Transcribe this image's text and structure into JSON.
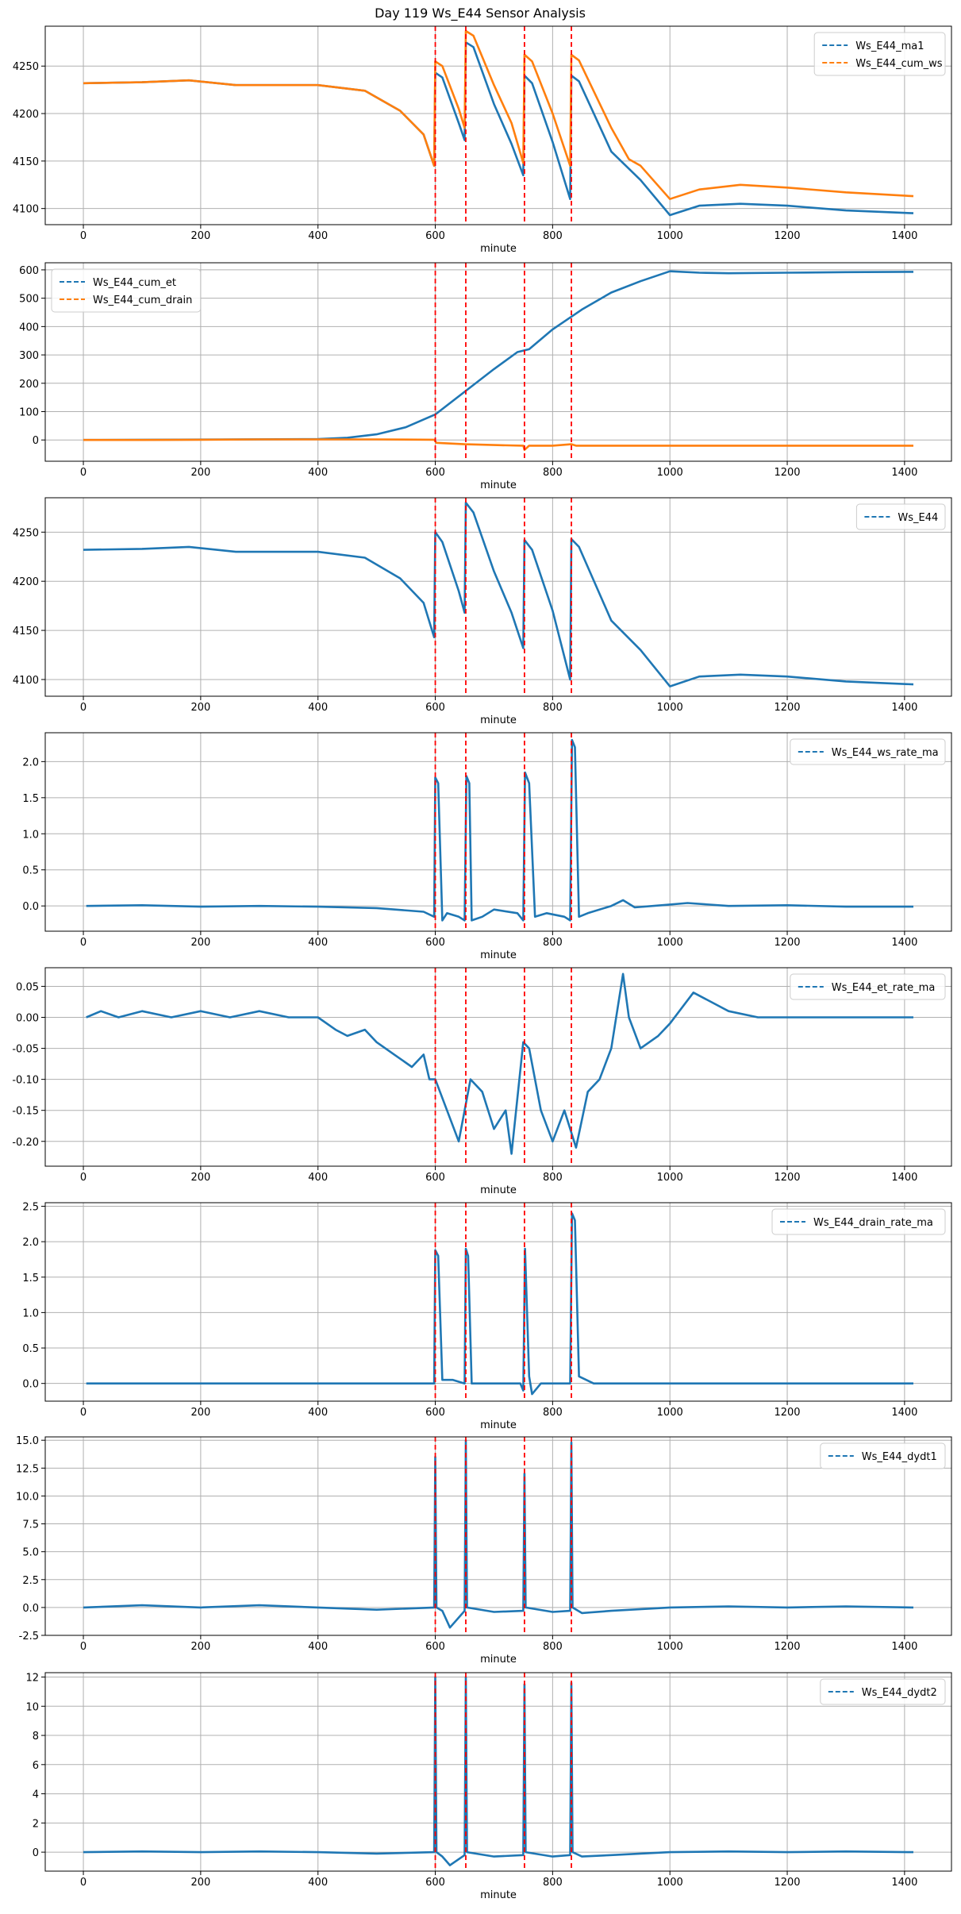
{
  "figure": {
    "title": "Day 119 Ws_E44 Sensor Analysis"
  },
  "colors": {
    "blue": "#1f77b4",
    "orange": "#ff7f0e",
    "event": "#ff0000",
    "grid": "#b0b0b0",
    "axis": "#000000"
  },
  "event_lines": [
    600,
    652,
    752,
    832
  ],
  "chart_data": [
    {
      "type": "line",
      "xlabel": "minute",
      "xlim": [
        -65,
        1480
      ],
      "ylim": [
        4083,
        4292
      ],
      "xticks": [
        0,
        200,
        400,
        600,
        800,
        1000,
        1200,
        1400
      ],
      "yticks": [
        4100,
        4150,
        4200,
        4250
      ],
      "ytick_labels": [
        "4100",
        "4150",
        "4200",
        "4250"
      ],
      "legend_pos": "top-right",
      "series": [
        {
          "name": "Ws_E44_ma1",
          "color": "blue",
          "x": [
            0,
            100,
            180,
            260,
            400,
            480,
            540,
            580,
            598,
            600,
            612,
            640,
            650,
            652,
            665,
            700,
            730,
            750,
            752,
            765,
            800,
            830,
            832,
            845,
            900,
            950,
            1000,
            1050,
            1120,
            1200,
            1300,
            1415
          ],
          "y": [
            4232,
            4233,
            4235,
            4230,
            4230,
            4224,
            4203,
            4178,
            4145,
            4243,
            4238,
            4190,
            4172,
            4275,
            4270,
            4210,
            4168,
            4135,
            4240,
            4232,
            4170,
            4110,
            4240,
            4234,
            4160,
            4130,
            4093,
            4103,
            4105,
            4103,
            4098,
            4095
          ]
        },
        {
          "name": "Ws_E44_cum_ws",
          "color": "orange",
          "x": [
            0,
            100,
            180,
            260,
            400,
            480,
            540,
            580,
            598,
            600,
            612,
            640,
            650,
            652,
            665,
            700,
            730,
            750,
            752,
            765,
            800,
            830,
            832,
            845,
            900,
            930,
            950,
            1000,
            1050,
            1120,
            1200,
            1300,
            1415
          ],
          "y": [
            4232,
            4233,
            4235,
            4230,
            4230,
            4224,
            4203,
            4178,
            4145,
            4255,
            4250,
            4205,
            4185,
            4287,
            4282,
            4230,
            4190,
            4148,
            4262,
            4255,
            4200,
            4145,
            4262,
            4256,
            4185,
            4152,
            4145,
            4110,
            4120,
            4125,
            4122,
            4117,
            4113
          ]
        }
      ]
    },
    {
      "type": "line",
      "xlabel": "minute",
      "xlim": [
        -65,
        1480
      ],
      "ylim": [
        -75,
        625
      ],
      "xticks": [
        0,
        200,
        400,
        600,
        800,
        1000,
        1200,
        1400
      ],
      "yticks": [
        0,
        100,
        200,
        300,
        400,
        500,
        600
      ],
      "ytick_labels": [
        "0",
        "100",
        "200",
        "300",
        "400",
        "500",
        "600"
      ],
      "legend_pos": "top-left",
      "series": [
        {
          "name": "Ws_E44_cum_et",
          "color": "blue",
          "x": [
            0,
            400,
            450,
            500,
            550,
            600,
            650,
            700,
            740,
            760,
            800,
            850,
            900,
            950,
            1000,
            1050,
            1100,
            1200,
            1300,
            1415
          ],
          "y": [
            0,
            3,
            8,
            20,
            45,
            90,
            170,
            250,
            310,
            320,
            390,
            460,
            520,
            560,
            595,
            590,
            588,
            590,
            592,
            593
          ]
        },
        {
          "name": "Ws_E44_cum_drain",
          "color": "orange",
          "x": [
            0,
            100,
            200,
            300,
            400,
            500,
            598,
            602,
            650,
            700,
            750,
            752,
            760,
            800,
            832,
            840,
            900,
            1000,
            1200,
            1415
          ],
          "y": [
            0,
            0,
            1,
            2,
            2,
            2,
            1,
            -10,
            -15,
            -18,
            -20,
            -35,
            -20,
            -20,
            -15,
            -20,
            -20,
            -20,
            -20,
            -20
          ]
        }
      ]
    },
    {
      "type": "line",
      "xlabel": "minute",
      "xlim": [
        -65,
        1480
      ],
      "ylim": [
        4083,
        4285
      ],
      "xticks": [
        0,
        200,
        400,
        600,
        800,
        1000,
        1200,
        1400
      ],
      "yticks": [
        4100,
        4150,
        4200,
        4250
      ],
      "ytick_labels": [
        "4100",
        "4150",
        "4200",
        "4250"
      ],
      "legend_pos": "top-right",
      "series": [
        {
          "name": "Ws_E44",
          "color": "blue",
          "x": [
            0,
            100,
            180,
            260,
            400,
            480,
            540,
            580,
            598,
            600,
            612,
            640,
            650,
            652,
            665,
            700,
            730,
            750,
            752,
            765,
            800,
            830,
            832,
            845,
            900,
            950,
            1000,
            1050,
            1120,
            1200,
            1300,
            1415
          ],
          "y": [
            4232,
            4233,
            4235,
            4230,
            4230,
            4224,
            4203,
            4178,
            4143,
            4250,
            4240,
            4190,
            4168,
            4280,
            4270,
            4210,
            4168,
            4132,
            4242,
            4232,
            4170,
            4100,
            4243,
            4235,
            4160,
            4130,
            4093,
            4103,
            4105,
            4103,
            4098,
            4095
          ]
        }
      ]
    },
    {
      "type": "line",
      "xlabel": "minute",
      "xlim": [
        -65,
        1480
      ],
      "ylim": [
        -0.35,
        2.4
      ],
      "xticks": [
        0,
        200,
        400,
        600,
        800,
        1000,
        1200,
        1400
      ],
      "yticks": [
        0,
        0.5,
        1.0,
        1.5,
        2.0
      ],
      "ytick_labels": [
        "0.0",
        "0.5",
        "1.0",
        "1.5",
        "2.0"
      ],
      "legend_pos": "top-right",
      "series": [
        {
          "name": "Ws_E44_ws_rate_ma",
          "color": "blue",
          "x": [
            5,
            100,
            200,
            300,
            400,
            500,
            580,
            598,
            600,
            605,
            612,
            620,
            640,
            650,
            653,
            658,
            662,
            680,
            700,
            740,
            750,
            753,
            760,
            770,
            790,
            820,
            830,
            833,
            838,
            845,
            860,
            900,
            920,
            940,
            1000,
            1030,
            1100,
            1200,
            1300,
            1415
          ],
          "y": [
            0,
            0.01,
            -0.01,
            0,
            -0.01,
            -0.03,
            -0.08,
            -0.15,
            1.78,
            1.7,
            -0.2,
            -0.1,
            -0.15,
            -0.2,
            1.8,
            1.7,
            -0.2,
            -0.15,
            -0.05,
            -0.1,
            -0.2,
            1.85,
            1.7,
            -0.15,
            -0.1,
            -0.15,
            -0.2,
            2.3,
            2.2,
            -0.15,
            -0.1,
            0,
            0.08,
            -0.02,
            0.02,
            0.04,
            0,
            0.01,
            -0.01,
            -0.01
          ]
        }
      ]
    },
    {
      "type": "line",
      "xlabel": "minute",
      "xlim": [
        -65,
        1480
      ],
      "ylim": [
        -0.24,
        0.08
      ],
      "xticks": [
        0,
        200,
        400,
        600,
        800,
        1000,
        1200,
        1400
      ],
      "yticks": [
        -0.2,
        -0.15,
        -0.1,
        -0.05,
        0,
        0.05
      ],
      "ytick_labels": [
        "-0.20",
        "-0.15",
        "-0.10",
        "-0.05",
        "0.00",
        "0.05"
      ],
      "legend_pos": "top-right",
      "series": [
        {
          "name": "Ws_E44_et_rate_ma",
          "color": "blue",
          "x": [
            5,
            30,
            60,
            100,
            150,
            200,
            250,
            300,
            350,
            400,
            430,
            450,
            480,
            500,
            530,
            560,
            580,
            590,
            600,
            620,
            640,
            660,
            680,
            700,
            720,
            730,
            750,
            760,
            780,
            800,
            820,
            840,
            860,
            880,
            900,
            920,
            930,
            950,
            980,
            1000,
            1040,
            1080,
            1100,
            1150,
            1200,
            1300,
            1415
          ],
          "y": [
            0,
            0.01,
            0,
            0.01,
            0,
            0.01,
            0,
            0.01,
            0,
            0,
            -0.02,
            -0.03,
            -0.02,
            -0.04,
            -0.06,
            -0.08,
            -0.06,
            -0.1,
            -0.1,
            -0.15,
            -0.2,
            -0.1,
            -0.12,
            -0.18,
            -0.15,
            -0.22,
            -0.04,
            -0.05,
            -0.15,
            -0.2,
            -0.15,
            -0.21,
            -0.12,
            -0.1,
            -0.05,
            0.07,
            0,
            -0.05,
            -0.03,
            -0.01,
            0.04,
            0.02,
            0.01,
            0,
            0,
            0,
            0
          ]
        }
      ]
    },
    {
      "type": "line",
      "xlabel": "minute",
      "xlim": [
        -65,
        1480
      ],
      "ylim": [
        -0.25,
        2.55
      ],
      "xticks": [
        0,
        200,
        400,
        600,
        800,
        1000,
        1200,
        1400
      ],
      "yticks": [
        0,
        0.5,
        1.0,
        1.5,
        2.0,
        2.5
      ],
      "ytick_labels": [
        "0.0",
        "0.5",
        "1.0",
        "1.5",
        "2.0",
        "2.5"
      ],
      "legend_pos": "top-right",
      "series": [
        {
          "name": "Ws_E44_drain_rate_ma",
          "color": "blue",
          "x": [
            5,
            590,
            598,
            600,
            605,
            612,
            630,
            650,
            652,
            656,
            662,
            700,
            745,
            750,
            753,
            760,
            765,
            780,
            820,
            830,
            833,
            838,
            845,
            870,
            1000,
            1415
          ],
          "y": [
            0,
            0,
            0,
            1.88,
            1.8,
            0.05,
            0.05,
            0,
            1.9,
            1.8,
            0,
            0,
            0,
            -0.1,
            1.9,
            0.1,
            -0.15,
            0,
            0,
            0,
            2.4,
            2.3,
            0.1,
            0,
            0,
            0
          ]
        }
      ]
    },
    {
      "type": "line",
      "xlabel": "minute",
      "xlim": [
        -65,
        1480
      ],
      "ylim": [
        -2.5,
        15.3
      ],
      "xticks": [
        0,
        200,
        400,
        600,
        800,
        1000,
        1200,
        1400
      ],
      "yticks": [
        -2.5,
        0,
        2.5,
        5.0,
        7.5,
        10.0,
        12.5,
        15.0
      ],
      "ytick_labels": [
        "-2.5",
        "0.0",
        "2.5",
        "5.0",
        "7.5",
        "10.0",
        "12.5",
        "15.0"
      ],
      "legend_pos": "top-right",
      "series": [
        {
          "name": "Ws_E44_dydt1",
          "color": "blue",
          "x": [
            0,
            100,
            200,
            300,
            400,
            500,
            598,
            600,
            602,
            612,
            625,
            650,
            652,
            654,
            700,
            750,
            752,
            754,
            800,
            830,
            832,
            834,
            850,
            900,
            1000,
            1100,
            1200,
            1300,
            1415
          ],
          "y": [
            0,
            0.2,
            0,
            0.2,
            0,
            -0.2,
            0,
            13.5,
            0,
            -0.3,
            -1.8,
            -0.3,
            15,
            0,
            -0.4,
            -0.3,
            12,
            0,
            -0.4,
            -0.3,
            14.8,
            0,
            -0.5,
            -0.3,
            0,
            0.1,
            0,
            0.1,
            0
          ]
        }
      ]
    },
    {
      "type": "line",
      "xlabel": "minute",
      "xlim": [
        -65,
        1480
      ],
      "ylim": [
        -1.3,
        12.3
      ],
      "xticks": [
        0,
        200,
        400,
        600,
        800,
        1000,
        1200,
        1400
      ],
      "yticks": [
        0,
        2,
        4,
        6,
        8,
        10,
        12
      ],
      "ytick_labels": [
        "0",
        "2",
        "4",
        "6",
        "8",
        "10",
        "12"
      ],
      "legend_pos": "top-right",
      "series": [
        {
          "name": "Ws_E44_dydt2",
          "color": "blue",
          "x": [
            0,
            100,
            200,
            300,
            400,
            500,
            598,
            600,
            602,
            612,
            625,
            650,
            652,
            654,
            700,
            750,
            752,
            754,
            800,
            830,
            832,
            834,
            850,
            900,
            1000,
            1100,
            1200,
            1300,
            1415
          ],
          "y": [
            0,
            0.05,
            0,
            0.05,
            0,
            -0.1,
            0,
            12,
            0,
            -0.3,
            -0.9,
            -0.2,
            12,
            0,
            -0.3,
            -0.2,
            11.5,
            0,
            -0.3,
            -0.2,
            11.6,
            0,
            -0.3,
            -0.2,
            0,
            0.05,
            0,
            0.05,
            0
          ]
        }
      ]
    }
  ]
}
